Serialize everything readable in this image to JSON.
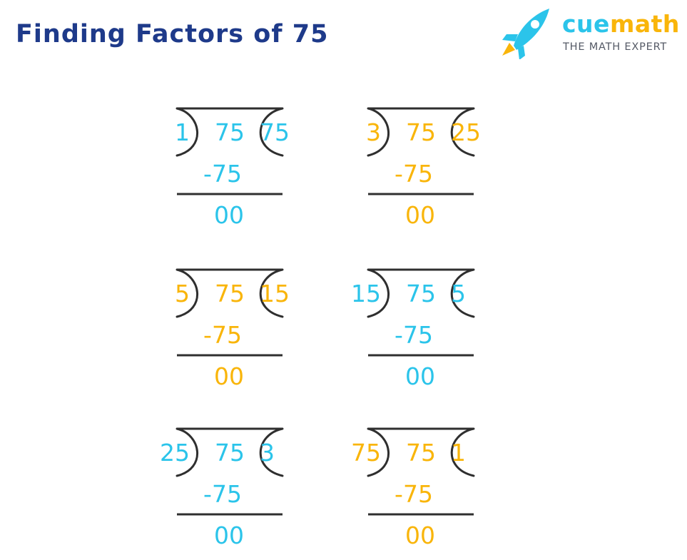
{
  "title": "Finding Factors of 75",
  "logo": {
    "brand_prefix": "cue",
    "brand_suffix": "math",
    "tagline": "THE MATH EXPERT"
  },
  "colors": {
    "title": "#1e3a8a",
    "blue": "#2bc4ea",
    "orange": "#f9b50a",
    "line": "#2f2f2f",
    "tagline": "#555a66",
    "brand_prefix": "#2bc4ea",
    "brand_suffix": "#f9b50a"
  },
  "divisions": [
    {
      "divisor": "1",
      "dividend": "75",
      "quotient": "75",
      "subtrahend": "-75",
      "remainder": "00",
      "color": "blue"
    },
    {
      "divisor": "3",
      "dividend": "75",
      "quotient": "25",
      "subtrahend": "-75",
      "remainder": "00",
      "color": "orange"
    },
    {
      "divisor": "5",
      "dividend": "75",
      "quotient": "15",
      "subtrahend": "-75",
      "remainder": "00",
      "color": "orange"
    },
    {
      "divisor": "15",
      "dividend": "75",
      "quotient": "5",
      "subtrahend": "-75",
      "remainder": "00",
      "color": "blue"
    },
    {
      "divisor": "25",
      "dividend": "75",
      "quotient": "3",
      "subtrahend": "-75",
      "remainder": "00",
      "color": "blue"
    },
    {
      "divisor": "75",
      "dividend": "75",
      "quotient": "1",
      "subtrahend": "-75",
      "remainder": "00",
      "color": "orange"
    }
  ]
}
